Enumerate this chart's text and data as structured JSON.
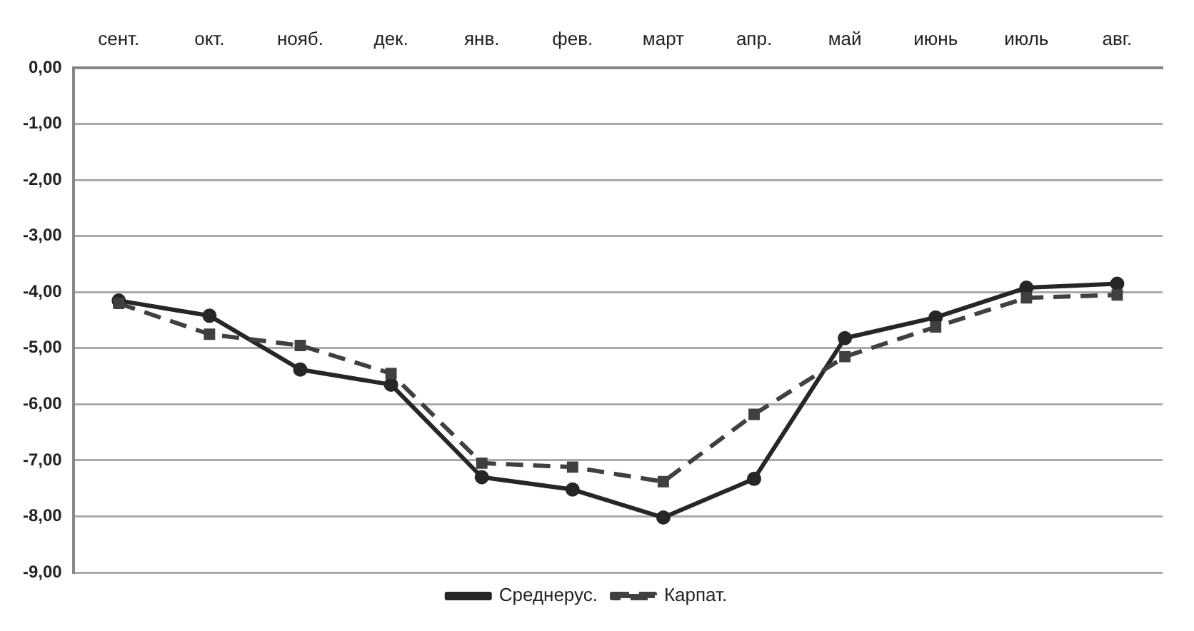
{
  "chart_data": {
    "type": "line",
    "categories": [
      "сент.",
      "окт.",
      "нояб.",
      "дек.",
      "янв.",
      "фев.",
      "март",
      "апр.",
      "май",
      "июнь",
      "июль",
      "авг."
    ],
    "series": [
      {
        "name": "Среднерус.",
        "color": "#262626",
        "marker": "circle",
        "line_style": "solid",
        "values": [
          -4.15,
          -4.42,
          -5.38,
          -5.65,
          -7.3,
          -7.52,
          -8.02,
          -7.33,
          -4.82,
          -4.45,
          -3.92,
          -3.85
        ]
      },
      {
        "name": "Карпат.",
        "color": "#404040",
        "marker": "square",
        "line_style": "dashed",
        "values": [
          -4.2,
          -4.75,
          -4.95,
          -5.45,
          -7.05,
          -7.12,
          -7.38,
          -6.18,
          -5.15,
          -4.62,
          -4.1,
          -4.05
        ]
      }
    ],
    "ylim": [
      -9,
      0
    ],
    "yticks": [
      {
        "value": -9,
        "label": "-9,00"
      },
      {
        "value": -8,
        "label": "-8,00"
      },
      {
        "value": -7,
        "label": "-7,00"
      },
      {
        "value": -6,
        "label": "-6,00"
      },
      {
        "value": -5,
        "label": "-5,00"
      },
      {
        "value": -4,
        "label": "-4,00"
      },
      {
        "value": -3,
        "label": "-3,00"
      },
      {
        "value": -2,
        "label": "-2,00"
      },
      {
        "value": -1,
        "label": "-1,00"
      },
      {
        "value": 0,
        "label": "0,00"
      }
    ],
    "grid": "y",
    "legend": "bottom"
  }
}
